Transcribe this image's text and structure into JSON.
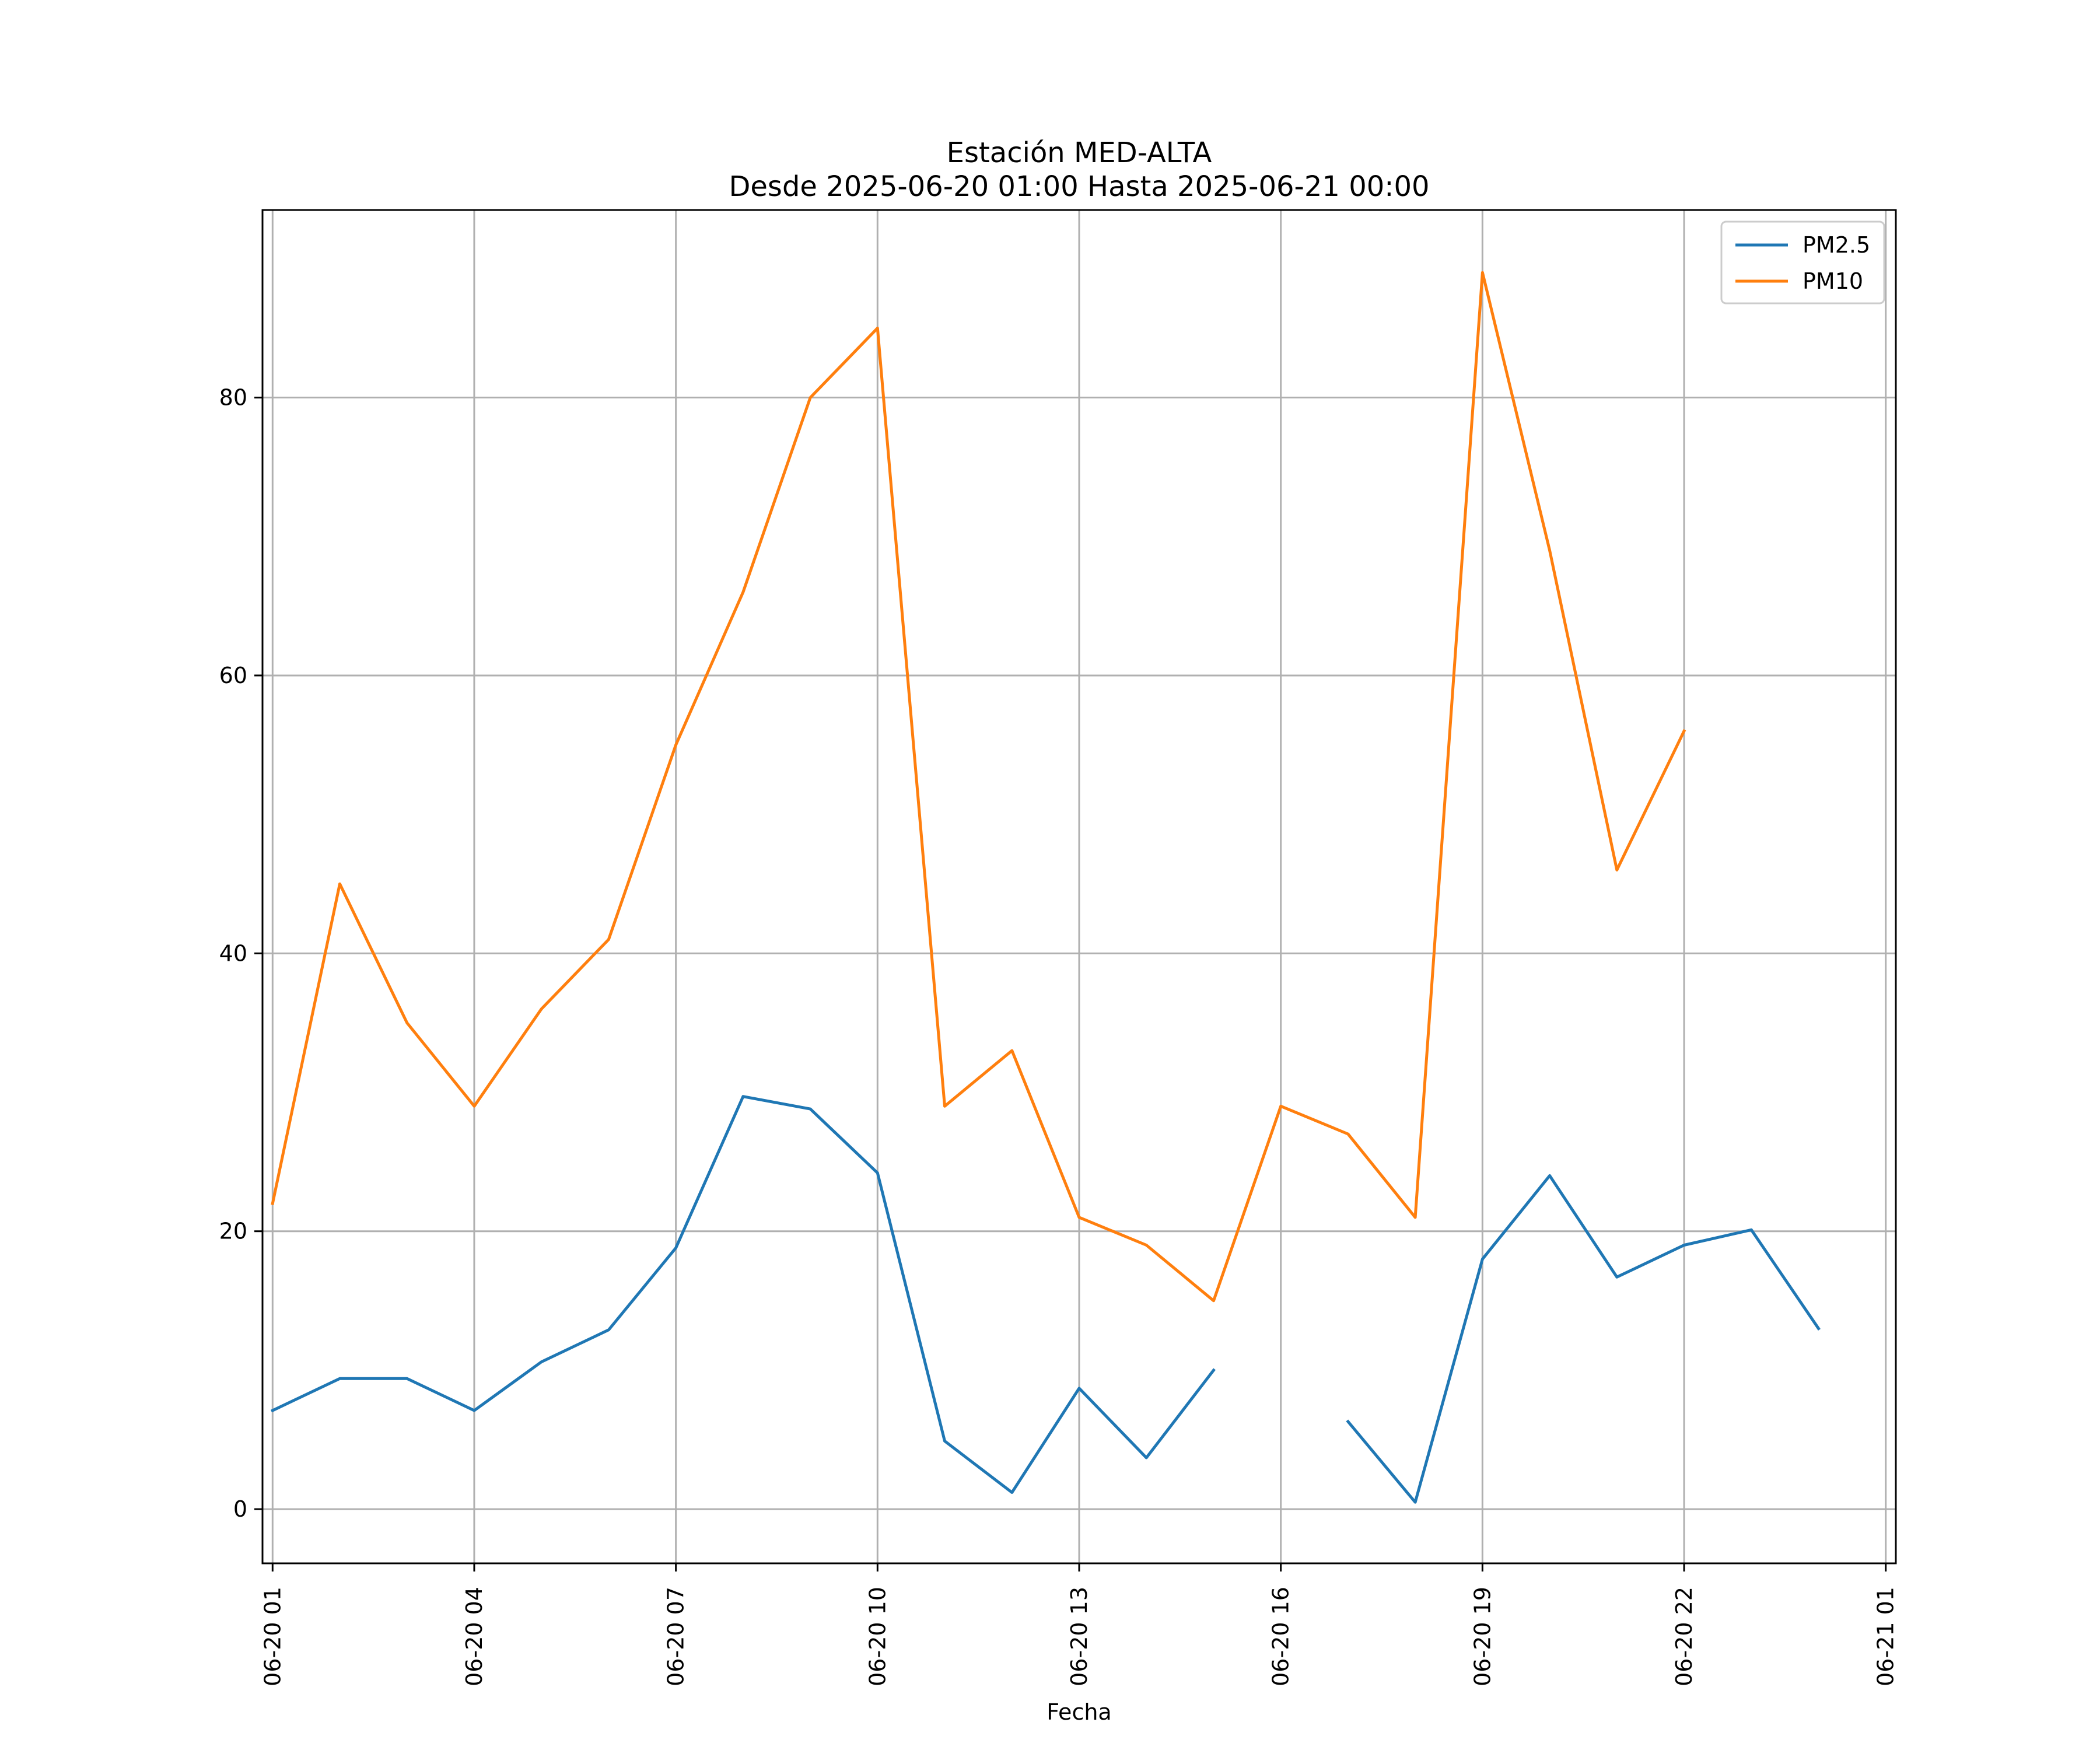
{
  "chart_data": {
    "type": "line",
    "title": [
      "Estación MED-ALTA",
      "Desde 2025-06-20 01:00 Hasta 2025-06-21 00:00"
    ],
    "xlabel": "Fecha",
    "ylabel": "",
    "x": [
      "06-20 01",
      "06-20 02",
      "06-20 03",
      "06-20 04",
      "06-20 05",
      "06-20 06",
      "06-20 07",
      "06-20 08",
      "06-20 09",
      "06-20 10",
      "06-20 11",
      "06-20 12",
      "06-20 13",
      "06-20 14",
      "06-20 15",
      "06-20 16",
      "06-20 17",
      "06-20 18",
      "06-20 19",
      "06-20 20",
      "06-20 21",
      "06-20 22",
      "06-20 23",
      "06-21 00"
    ],
    "x_ticks": [
      "06-20 01",
      "06-20 04",
      "06-20 07",
      "06-20 10",
      "06-20 13",
      "06-20 16",
      "06-20 19",
      "06-20 22",
      "06-21 01"
    ],
    "ylim": [
      -3.9,
      93.5
    ],
    "y_ticks": [
      0,
      20,
      40,
      60,
      80
    ],
    "grid": true,
    "legend_position": "upper right",
    "series": [
      {
        "name": "PM2.5",
        "color": "#1f77b4",
        "values": [
          7.1,
          9.4,
          9.4,
          7.1,
          10.6,
          12.9,
          18.8,
          29.7,
          28.8,
          24.2,
          4.9,
          1.2,
          8.7,
          3.7,
          10.0,
          null,
          6.3,
          0.5,
          18.0,
          24.0,
          16.7,
          19.0,
          20.1,
          13.0
        ]
      },
      {
        "name": "PM10",
        "color": "#ff7f0e",
        "values": [
          22.0,
          45.0,
          35.0,
          29.0,
          36.0,
          41.0,
          55.0,
          66.0,
          80.0,
          85.0,
          29.0,
          33.0,
          21.0,
          19.0,
          15.0,
          29.0,
          27.0,
          21.0,
          89.0,
          69.0,
          46.0,
          56.0,
          null,
          null
        ]
      }
    ]
  }
}
